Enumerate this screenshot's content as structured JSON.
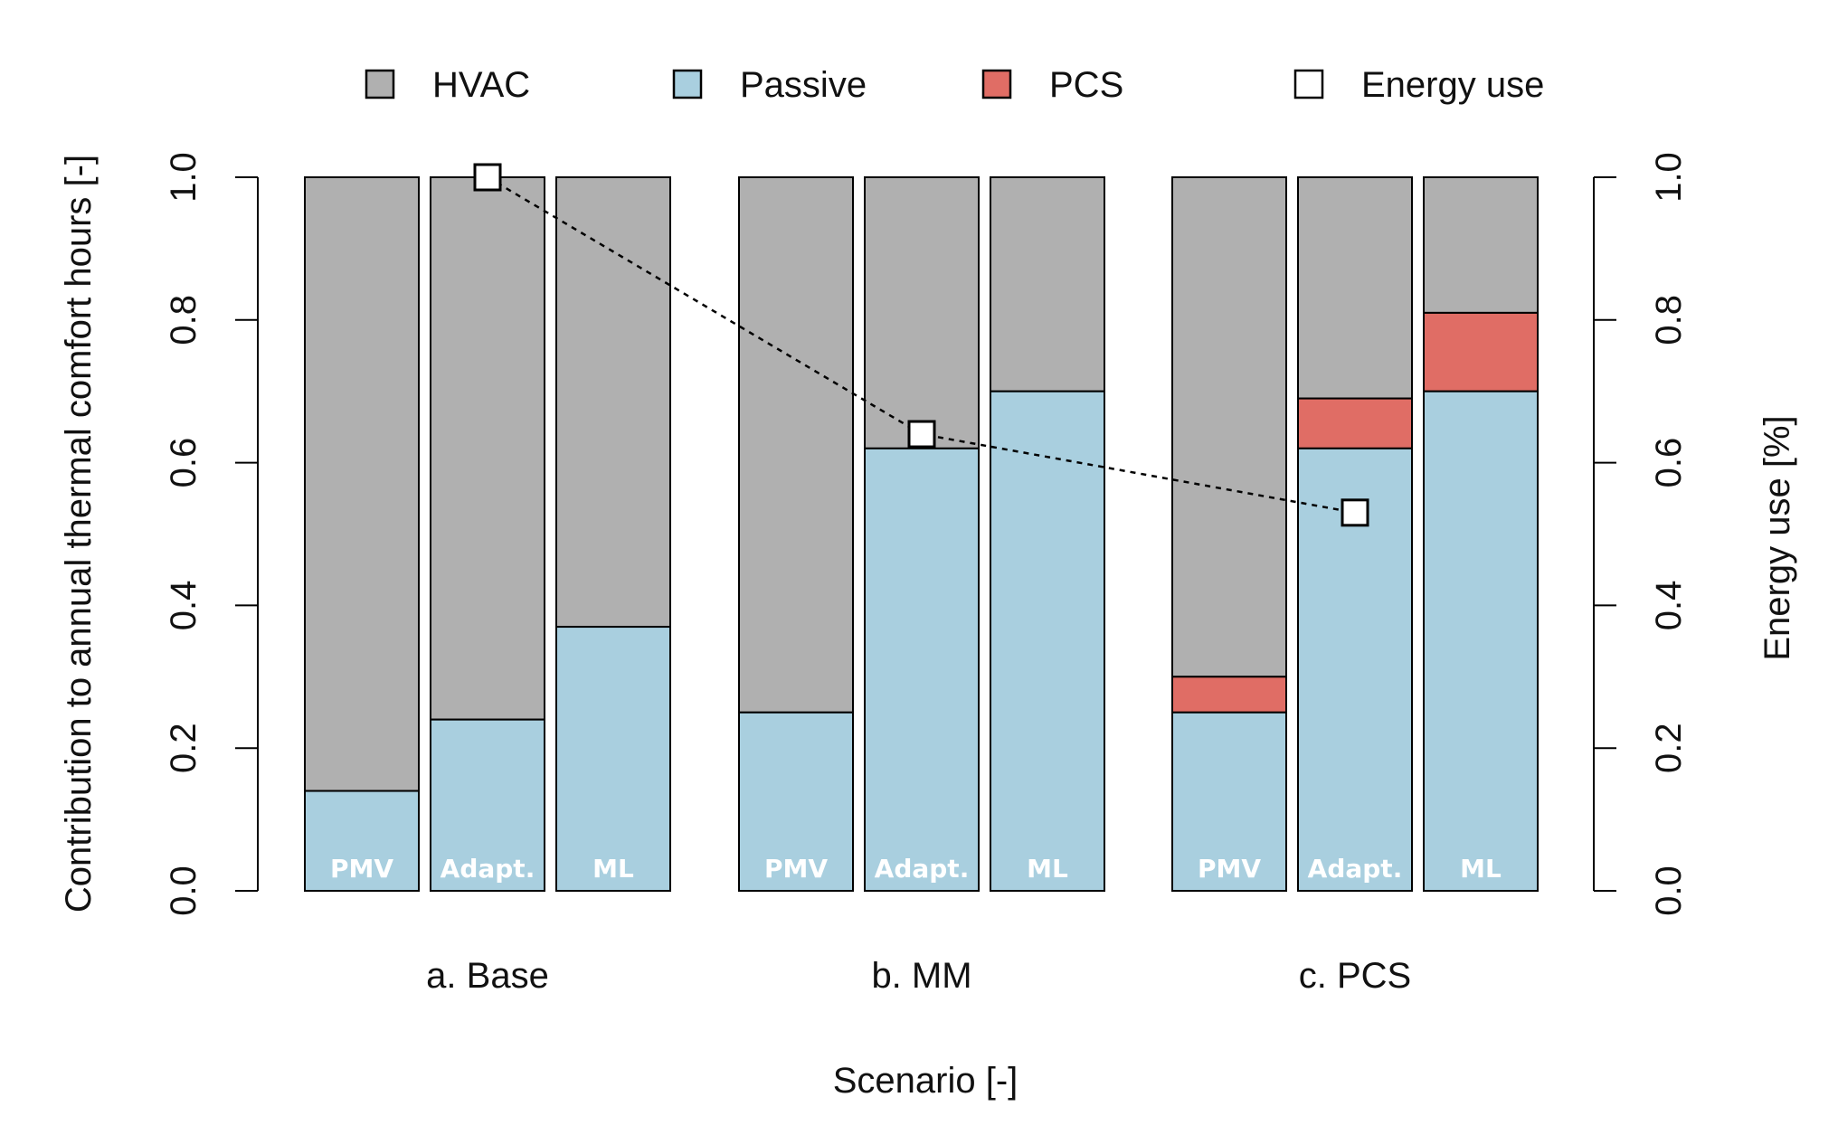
{
  "chart_data": {
    "type": "bar",
    "stacked": true,
    "xlabel": "Scenario [-]",
    "ylabel": "Contribution to annual thermal comfort hours [-]",
    "y2label": "Energy use [%]",
    "ylim": [
      0,
      1
    ],
    "y2lim": [
      0,
      1
    ],
    "yticks": [
      "0.0",
      "0.2",
      "0.4",
      "0.6",
      "0.8",
      "1.0"
    ],
    "y2ticks": [
      "0.0",
      "0.2",
      "0.4",
      "0.6",
      "0.8",
      "1.0"
    ],
    "groups": [
      {
        "label": "a. Base",
        "bars": [
          {
            "label": "PMV",
            "passive": 0.14,
            "pcs": 0.0
          },
          {
            "label": "Adapt.",
            "passive": 0.24,
            "pcs": 0.0
          },
          {
            "label": "ML",
            "passive": 0.37,
            "pcs": 0.0
          }
        ]
      },
      {
        "label": "b. MM",
        "bars": [
          {
            "label": "PMV",
            "passive": 0.25,
            "pcs": 0.0
          },
          {
            "label": "Adapt.",
            "passive": 0.62,
            "pcs": 0.0
          },
          {
            "label": "ML",
            "passive": 0.7,
            "pcs": 0.0
          }
        ]
      },
      {
        "label": "c. PCS",
        "bars": [
          {
            "label": "PMV",
            "passive": 0.25,
            "pcs": 0.05
          },
          {
            "label": "Adapt.",
            "passive": 0.62,
            "pcs": 0.07
          },
          {
            "label": "ML",
            "passive": 0.7,
            "pcs": 0.11
          }
        ]
      }
    ],
    "series": [
      {
        "name": "HVAC",
        "color": "#b0b0b0"
      },
      {
        "name": "Passive",
        "color": "#a9cfdf"
      },
      {
        "name": "PCS",
        "color": "#e06d65"
      }
    ],
    "energy_use": {
      "name": "Energy use",
      "values": [
        1.0,
        0.64,
        0.53
      ],
      "color": "#ffffff"
    },
    "legend_position": "top"
  }
}
